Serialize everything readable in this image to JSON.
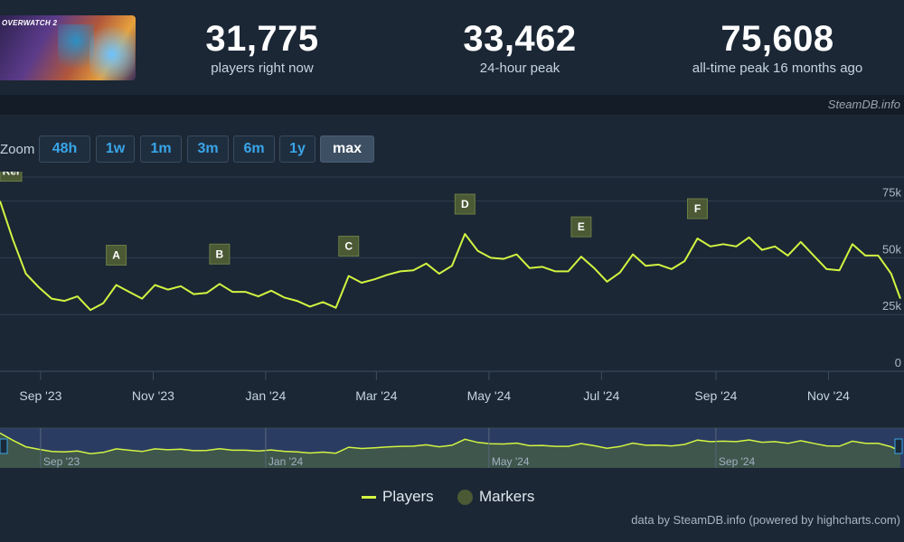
{
  "header": {
    "art_logo": "OVERWATCH 2",
    "stats": [
      {
        "value": "31,775",
        "label": "players right now"
      },
      {
        "value": "33,462",
        "label": "24-hour peak"
      },
      {
        "value": "75,608",
        "label": "all-time peak 16 months ago"
      }
    ]
  },
  "brand": "SteamDB.info",
  "zoom": {
    "label": "Zoom",
    "buttons": [
      "48h",
      "1w",
      "1m",
      "3m",
      "6m",
      "1y",
      "max"
    ],
    "active": "max"
  },
  "colors": {
    "line": "#d2f441",
    "marker_fill": "#4b5a35",
    "grid": "#2e3d4f",
    "navigator_fill": "#2e3f68"
  },
  "chart_data": {
    "type": "line",
    "series": [
      {
        "name": "Players",
        "points": [
          [
            "2023-08-10",
            75000
          ],
          [
            "2023-08-17",
            58000
          ],
          [
            "2023-08-24",
            43000
          ],
          [
            "2023-08-31",
            37000
          ],
          [
            "2023-09-07",
            32000
          ],
          [
            "2023-09-14",
            31000
          ],
          [
            "2023-09-21",
            33000
          ],
          [
            "2023-09-28",
            27000
          ],
          [
            "2023-10-05",
            30000
          ],
          [
            "2023-10-12",
            38000
          ],
          [
            "2023-10-19",
            35000
          ],
          [
            "2023-10-26",
            32000
          ],
          [
            "2023-11-02",
            38000
          ],
          [
            "2023-11-09",
            36000
          ],
          [
            "2023-11-16",
            37500
          ],
          [
            "2023-11-23",
            34000
          ],
          [
            "2023-11-30",
            34500
          ],
          [
            "2023-12-07",
            38500
          ],
          [
            "2023-12-14",
            35000
          ],
          [
            "2023-12-21",
            35000
          ],
          [
            "2023-12-28",
            33000
          ],
          [
            "2024-01-04",
            35500
          ],
          [
            "2024-01-11",
            32500
          ],
          [
            "2024-01-18",
            31000
          ],
          [
            "2024-01-25",
            28500
          ],
          [
            "2024-02-01",
            30500
          ],
          [
            "2024-02-08",
            28000
          ],
          [
            "2024-02-15",
            42000
          ],
          [
            "2024-02-22",
            39000
          ],
          [
            "2024-02-29",
            40500
          ],
          [
            "2024-03-07",
            42500
          ],
          [
            "2024-03-14",
            44000
          ],
          [
            "2024-03-21",
            44500
          ],
          [
            "2024-03-28",
            47500
          ],
          [
            "2024-04-04",
            43000
          ],
          [
            "2024-04-11",
            46500
          ],
          [
            "2024-04-18",
            60500
          ],
          [
            "2024-04-25",
            53000
          ],
          [
            "2024-05-02",
            50000
          ],
          [
            "2024-05-09",
            49500
          ],
          [
            "2024-05-16",
            51500
          ],
          [
            "2024-05-23",
            45500
          ],
          [
            "2024-05-30",
            46000
          ],
          [
            "2024-06-06",
            44000
          ],
          [
            "2024-06-13",
            44000
          ],
          [
            "2024-06-20",
            50500
          ],
          [
            "2024-06-27",
            45500
          ],
          [
            "2024-07-04",
            39500
          ],
          [
            "2024-07-11",
            43500
          ],
          [
            "2024-07-18",
            51500
          ],
          [
            "2024-07-25",
            46500
          ],
          [
            "2024-08-01",
            47000
          ],
          [
            "2024-08-08",
            45000
          ],
          [
            "2024-08-15",
            48500
          ],
          [
            "2024-08-22",
            58500
          ],
          [
            "2024-08-29",
            55000
          ],
          [
            "2024-09-05",
            56000
          ],
          [
            "2024-09-12",
            55000
          ],
          [
            "2024-09-19",
            59000
          ],
          [
            "2024-09-26",
            53500
          ],
          [
            "2024-10-03",
            55000
          ],
          [
            "2024-10-10",
            51000
          ],
          [
            "2024-10-17",
            57000
          ],
          [
            "2024-10-24",
            51000
          ],
          [
            "2024-10-31",
            45000
          ],
          [
            "2024-11-07",
            44500
          ],
          [
            "2024-11-14",
            56000
          ],
          [
            "2024-11-21",
            51000
          ],
          [
            "2024-11-28",
            51000
          ],
          [
            "2024-12-05",
            43000
          ],
          [
            "2024-12-10",
            32000
          ]
        ]
      }
    ],
    "markers": [
      {
        "label": "Rel",
        "x": "2023-08-10"
      },
      {
        "label": "A",
        "x": "2023-10-12"
      },
      {
        "label": "B",
        "x": "2023-12-07"
      },
      {
        "label": "C",
        "x": "2024-02-15"
      },
      {
        "label": "D",
        "x": "2024-04-18"
      },
      {
        "label": "E",
        "x": "2024-06-20"
      },
      {
        "label": "F",
        "x": "2024-08-22"
      }
    ],
    "ylim": [
      0,
      80000
    ],
    "y_ticks": [
      {
        "value": 0,
        "label": "0"
      },
      {
        "value": 25000,
        "label": "25k"
      },
      {
        "value": 50000,
        "label": "50k"
      },
      {
        "value": 75000,
        "label": "75k"
      }
    ],
    "x_ticks": [
      {
        "value": "2023-09-01",
        "label": "Sep '23"
      },
      {
        "value": "2023-11-01",
        "label": "Nov '23"
      },
      {
        "value": "2024-01-01",
        "label": "Jan '24"
      },
      {
        "value": "2024-03-01",
        "label": "Mar '24"
      },
      {
        "value": "2024-05-01",
        "label": "May '24"
      },
      {
        "value": "2024-07-01",
        "label": "Jul '24"
      },
      {
        "value": "2024-09-01",
        "label": "Sep '24"
      },
      {
        "value": "2024-11-01",
        "label": "Nov '24"
      }
    ],
    "xlim": [
      "2023-08-10",
      "2024-12-10"
    ],
    "navigator_ticks": [
      {
        "value": "2023-09-01",
        "label": "Sep '23"
      },
      {
        "value": "2024-01-01",
        "label": "Jan '24"
      },
      {
        "value": "2024-05-01",
        "label": "May '24"
      },
      {
        "value": "2024-09-01",
        "label": "Sep '24"
      }
    ],
    "grid": true,
    "legend": [
      "Players",
      "Markers"
    ],
    "legend_position": "bottom-center"
  },
  "legend": {
    "players": "Players",
    "markers": "Markers"
  },
  "credit": "data by SteamDB.info (powered by highcharts.com)"
}
